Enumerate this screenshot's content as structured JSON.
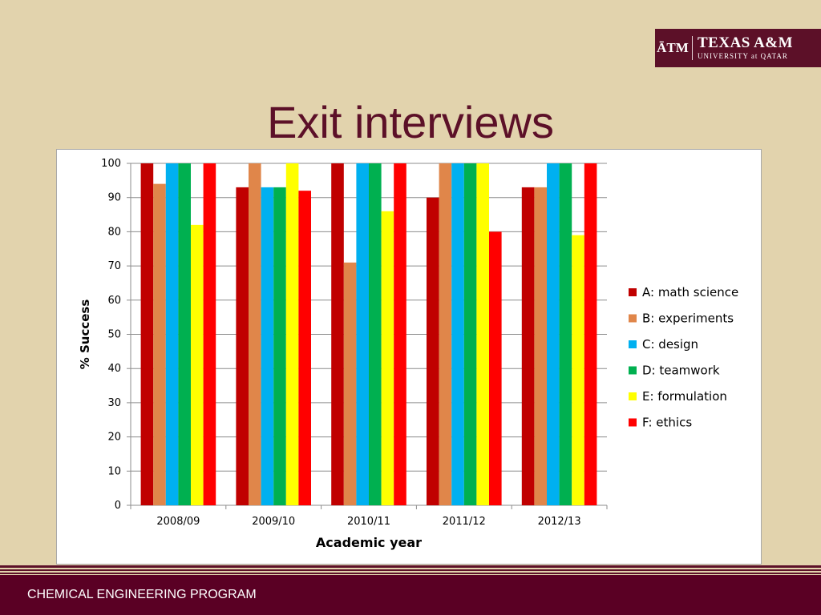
{
  "slide": {
    "title": "Exit interviews",
    "footer": "CHEMICAL ENGINEERING PROGRAM"
  },
  "logo": {
    "mark": "ĀTM",
    "name": "TEXAS A&M",
    "sub": "UNIVERSITY at QATAR",
    "bg_color": "#5c1028"
  },
  "chart_data": {
    "type": "bar",
    "title": "",
    "xlabel": "Academic year",
    "ylabel": "% Success",
    "ylim": [
      0,
      100
    ],
    "yticks": [
      0,
      10,
      20,
      30,
      40,
      50,
      60,
      70,
      80,
      90,
      100
    ],
    "grid": true,
    "legend_position": "right",
    "categories": [
      "2008/09",
      "2009/10",
      "2010/11",
      "2011/12",
      "2012/13"
    ],
    "series": [
      {
        "name": "A: math science",
        "color": "#c00000",
        "values": [
          100,
          93,
          100,
          90,
          93
        ]
      },
      {
        "name": "B: experiments",
        "color": "#e0864a",
        "values": [
          94,
          100,
          71,
          100,
          93
        ]
      },
      {
        "name": "C: design",
        "color": "#00b0f0",
        "values": [
          100,
          93,
          100,
          100,
          100
        ]
      },
      {
        "name": "D: teamwork",
        "color": "#00b050",
        "values": [
          100,
          93,
          100,
          100,
          100
        ]
      },
      {
        "name": "E: formulation",
        "color": "#ffff00",
        "values": [
          82,
          100,
          86,
          100,
          79
        ]
      },
      {
        "name": "F: ethics",
        "color": "#ff0000",
        "values": [
          100,
          92,
          100,
          80,
          100
        ]
      }
    ]
  }
}
